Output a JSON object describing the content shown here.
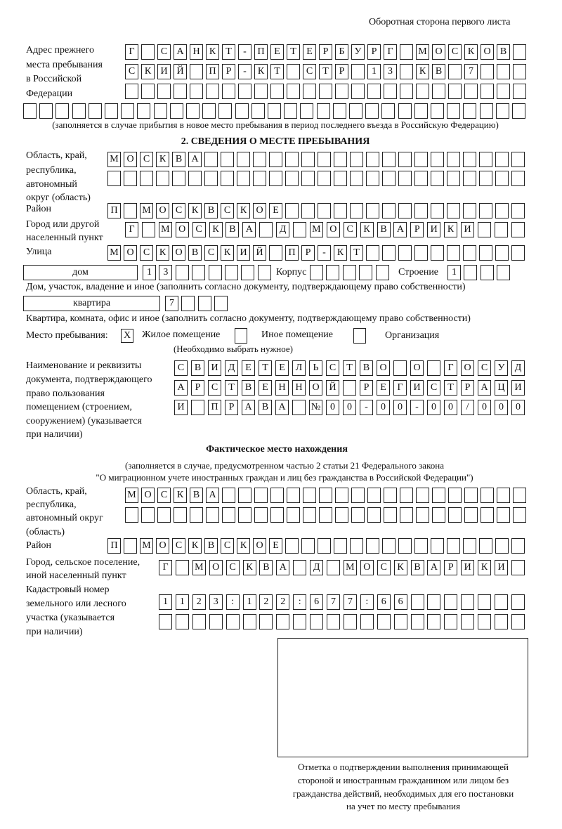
{
  "header": "Оборотная сторона первого листа",
  "prev_address": {
    "label": [
      "Адрес прежнего",
      "места пребывания",
      "в Российской",
      "Федерации"
    ],
    "rows": [
      "Г САНКТ-ПЕТЕРБУРГ МОСКОВ",
      "СКИЙ ПР-КТ СТР 13 КВ 7",
      "",
      ""
    ],
    "note": "(заполняется в случае прибытия в новое место пребывания в период последнего въезда в Российскую Федерацию)"
  },
  "section2": {
    "title": "2. СВЕДЕНИЯ О МЕСТЕ ПРЕБЫВАНИЯ",
    "region_label": [
      "Область, край,",
      "республика,",
      "автономный",
      "округ (область)"
    ],
    "region_rows": [
      "МОСКВА",
      ""
    ],
    "district_label": "Район",
    "district": "П МОСКВСКОЕ",
    "city_label": [
      "Город или другой",
      "населенный пункт"
    ],
    "city": "Г МОСКВА Д МОСКВАРИКИ",
    "street_label": "Улица",
    "street": "МОСКОВСКИЙ ПР-КТ",
    "house_type": "дом",
    "house_number": "13",
    "korpus_label": "Корпус",
    "korpus": "",
    "stroenie_label": "Строение",
    "stroenie": "1",
    "house_note": "Дом, участок, владение и иное (заполнить согласно документу, подтверждающему право собственности)",
    "flat_type": "квартира",
    "flat_number": "7",
    "flat_note": "Квартира, комната, офис и иное (заполнить согласно документу, подтверждающему право собственности)",
    "stay_place_label": "Место пребывания:",
    "options": [
      {
        "label": "Жилое помещение",
        "mark": "X",
        "checked": true
      },
      {
        "label": "Иное помещение",
        "mark": "",
        "checked": false
      },
      {
        "label": "Организация",
        "mark": "",
        "checked": false
      }
    ],
    "choose_note": "(Необходимо выбрать нужное)",
    "doc_label": [
      "Наименование и реквизиты",
      "документа, подтверждающего",
      "право пользования",
      "помещением (строением,",
      "сооружением) (указывается",
      "при наличии)"
    ],
    "doc_rows": [
      "СВИДЕТЕЛЬСТВО О ГОСУД",
      "АРСТВЕННОЙ РЕГИСТРАЦИ",
      "И ПРАВА №00-00-00/000"
    ]
  },
  "actual": {
    "title": "Фактическое место нахождения",
    "subtitle": [
      "(заполняется в случае, предусмотренном частью 2 статьи 21 Федерального закона",
      "\"О миграционном учете иностранных граждан и лиц без гражданства в Российской Федерации\")"
    ],
    "region_label": [
      "Область, край,",
      "республика,",
      "автономный округ",
      "(область)"
    ],
    "region_rows": [
      "МОСКВА",
      ""
    ],
    "district_label": "Район",
    "district": "П МОСКВСКОЕ",
    "city_label": [
      "Город, сельское поселение,",
      "иной населенный пункт"
    ],
    "city": "Г МОСКВА Д МОСКВАРИКИ",
    "cadastre_label": [
      "Кадастровый номер",
      "земельного или лесного",
      "участка (указывается",
      "при наличии)"
    ],
    "cadastre_rows": [
      "1123:122:677:66",
      ""
    ]
  },
  "confirmation_caption": [
    "Отметка о подтверждении выполнения принимающей",
    "стороной и иностранным гражданином или лицом без",
    "гражданства действий, необходимых для его постановки",
    "на учет по месту пребывания"
  ]
}
